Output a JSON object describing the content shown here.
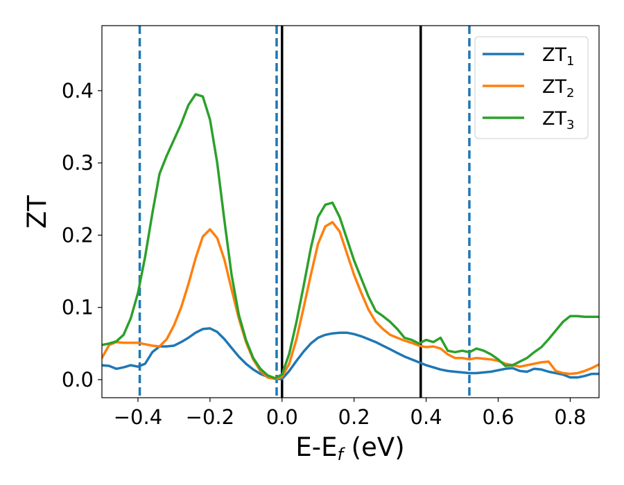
{
  "chart_data": {
    "type": "line",
    "xlabel": "E-E",
    "xlabel_sub": "f",
    "xlabel_unit": " (eV)",
    "ylabel": "ZT",
    "xlim": [
      -0.5,
      0.88
    ],
    "ylim": [
      -0.025,
      0.49
    ],
    "xticks": [
      -0.4,
      -0.2,
      0.0,
      0.2,
      0.4,
      0.6,
      0.8
    ],
    "xtick_labels": [
      "−0.4",
      "−0.2",
      "0.0",
      "0.2",
      "0.4",
      "0.6",
      "0.8"
    ],
    "yticks": [
      0.0,
      0.1,
      0.2,
      0.3,
      0.4
    ],
    "ytick_labels": [
      "0.0",
      "0.1",
      "0.2",
      "0.3",
      "0.4"
    ],
    "grid": false,
    "legend_position": "top-right",
    "vlines_dashed": {
      "x": [
        -0.395,
        -0.015,
        0.52
      ],
      "color": "#1f77b4"
    },
    "vlines_solid": {
      "x": [
        0.0,
        0.385
      ],
      "color": "#000000"
    },
    "series": [
      {
        "name": "ZT",
        "name_sub": "1",
        "color": "#1f77b4",
        "x": [
          -0.5,
          -0.48,
          -0.46,
          -0.44,
          -0.42,
          -0.4,
          -0.38,
          -0.36,
          -0.34,
          -0.32,
          -0.3,
          -0.28,
          -0.26,
          -0.24,
          -0.22,
          -0.2,
          -0.18,
          -0.16,
          -0.14,
          -0.12,
          -0.1,
          -0.08,
          -0.06,
          -0.04,
          -0.02,
          0.0,
          0.02,
          0.04,
          0.06,
          0.08,
          0.1,
          0.12,
          0.14,
          0.16,
          0.18,
          0.2,
          0.22,
          0.24,
          0.26,
          0.28,
          0.3,
          0.32,
          0.34,
          0.36,
          0.38,
          0.4,
          0.42,
          0.44,
          0.46,
          0.48,
          0.5,
          0.52,
          0.54,
          0.56,
          0.58,
          0.6,
          0.62,
          0.64,
          0.66,
          0.68,
          0.7,
          0.72,
          0.74,
          0.76,
          0.78,
          0.8,
          0.82,
          0.84,
          0.86,
          0.88
        ],
        "y": [
          0.02,
          0.019,
          0.015,
          0.017,
          0.02,
          0.018,
          0.022,
          0.038,
          0.046,
          0.046,
          0.047,
          0.052,
          0.058,
          0.065,
          0.07,
          0.071,
          0.066,
          0.056,
          0.044,
          0.032,
          0.022,
          0.014,
          0.008,
          0.004,
          0.001,
          0.001,
          0.012,
          0.026,
          0.039,
          0.05,
          0.058,
          0.062,
          0.064,
          0.065,
          0.065,
          0.063,
          0.06,
          0.056,
          0.052,
          0.047,
          0.042,
          0.037,
          0.032,
          0.028,
          0.024,
          0.02,
          0.017,
          0.014,
          0.012,
          0.011,
          0.01,
          0.009,
          0.009,
          0.01,
          0.011,
          0.013,
          0.015,
          0.016,
          0.012,
          0.011,
          0.015,
          0.014,
          0.011,
          0.009,
          0.007,
          0.003,
          0.003,
          0.005,
          0.008,
          0.008
        ]
      },
      {
        "name": "ZT",
        "name_sub": "2",
        "color": "#ff7f0e",
        "x": [
          -0.5,
          -0.48,
          -0.46,
          -0.44,
          -0.42,
          -0.4,
          -0.38,
          -0.36,
          -0.34,
          -0.32,
          -0.3,
          -0.28,
          -0.26,
          -0.24,
          -0.22,
          -0.2,
          -0.18,
          -0.16,
          -0.14,
          -0.12,
          -0.1,
          -0.08,
          -0.06,
          -0.04,
          -0.02,
          0.0,
          0.02,
          0.04,
          0.06,
          0.08,
          0.1,
          0.12,
          0.14,
          0.16,
          0.18,
          0.2,
          0.22,
          0.24,
          0.26,
          0.28,
          0.3,
          0.32,
          0.34,
          0.36,
          0.38,
          0.4,
          0.42,
          0.44,
          0.46,
          0.48,
          0.5,
          0.52,
          0.54,
          0.56,
          0.58,
          0.6,
          0.62,
          0.64,
          0.66,
          0.68,
          0.7,
          0.72,
          0.74,
          0.76,
          0.78,
          0.8,
          0.82,
          0.84,
          0.86,
          0.88
        ],
        "y": [
          0.03,
          0.048,
          0.052,
          0.051,
          0.051,
          0.051,
          0.049,
          0.047,
          0.046,
          0.056,
          0.075,
          0.1,
          0.132,
          0.168,
          0.198,
          0.208,
          0.196,
          0.166,
          0.125,
          0.085,
          0.052,
          0.028,
          0.012,
          0.003,
          0.001,
          0.004,
          0.022,
          0.056,
          0.1,
          0.145,
          0.188,
          0.212,
          0.218,
          0.205,
          0.175,
          0.145,
          0.12,
          0.097,
          0.08,
          0.07,
          0.062,
          0.058,
          0.054,
          0.051,
          0.047,
          0.045,
          0.046,
          0.043,
          0.035,
          0.03,
          0.03,
          0.028,
          0.03,
          0.029,
          0.028,
          0.026,
          0.022,
          0.02,
          0.018,
          0.02,
          0.022,
          0.024,
          0.025,
          0.012,
          0.009,
          0.008,
          0.009,
          0.012,
          0.016,
          0.021
        ]
      },
      {
        "name": "ZT",
        "name_sub": "3",
        "color": "#2ca02c",
        "x": [
          -0.5,
          -0.48,
          -0.46,
          -0.44,
          -0.42,
          -0.4,
          -0.38,
          -0.36,
          -0.34,
          -0.32,
          -0.3,
          -0.28,
          -0.26,
          -0.24,
          -0.22,
          -0.2,
          -0.18,
          -0.16,
          -0.14,
          -0.12,
          -0.1,
          -0.08,
          -0.06,
          -0.04,
          -0.02,
          0.0,
          0.02,
          0.04,
          0.06,
          0.08,
          0.1,
          0.12,
          0.14,
          0.16,
          0.18,
          0.2,
          0.22,
          0.24,
          0.26,
          0.28,
          0.3,
          0.32,
          0.34,
          0.36,
          0.38,
          0.4,
          0.42,
          0.44,
          0.46,
          0.48,
          0.5,
          0.52,
          0.54,
          0.56,
          0.58,
          0.6,
          0.62,
          0.64,
          0.66,
          0.68,
          0.7,
          0.72,
          0.74,
          0.76,
          0.78,
          0.8,
          0.82,
          0.84,
          0.86,
          0.88
        ],
        "y": [
          0.048,
          0.05,
          0.053,
          0.062,
          0.085,
          0.12,
          0.17,
          0.23,
          0.285,
          0.31,
          0.332,
          0.354,
          0.38,
          0.395,
          0.392,
          0.36,
          0.3,
          0.22,
          0.145,
          0.09,
          0.055,
          0.03,
          0.015,
          0.006,
          0.002,
          0.007,
          0.036,
          0.08,
          0.13,
          0.182,
          0.225,
          0.242,
          0.245,
          0.225,
          0.195,
          0.165,
          0.14,
          0.115,
          0.095,
          0.088,
          0.08,
          0.07,
          0.058,
          0.055,
          0.05,
          0.055,
          0.052,
          0.058,
          0.04,
          0.038,
          0.04,
          0.038,
          0.043,
          0.04,
          0.035,
          0.028,
          0.019,
          0.02,
          0.025,
          0.03,
          0.038,
          0.045,
          0.056,
          0.068,
          0.08,
          0.088,
          0.088,
          0.087,
          0.087,
          0.087
        ]
      }
    ]
  }
}
